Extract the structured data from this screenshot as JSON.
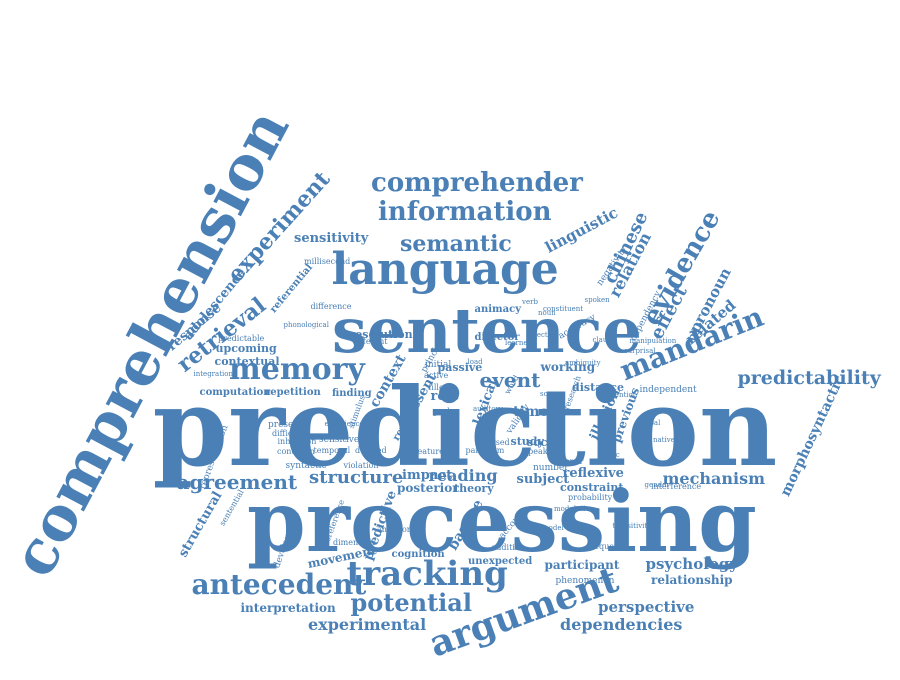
{
  "colors": {
    "word_fill": "#4a80b5",
    "background": "#ffffff"
  },
  "words": [
    "comprehension",
    "prediction",
    "processing",
    "sentence",
    "language",
    "comprehender",
    "information",
    "semantic",
    "memory",
    "mandarin",
    "predictability",
    "argument",
    "tracking",
    "antecedent",
    "potential",
    "experimental",
    "dependencies",
    "perspective",
    "psychology",
    "relationship",
    "mechanism",
    "agreement",
    "structure",
    "reading",
    "event",
    "evidence",
    "chinese",
    "linguistic",
    "relation",
    "pronoun",
    "related",
    "effect",
    "experiment",
    "retrieval",
    "sensitivity",
    "adolescence",
    "response",
    "upcoming",
    "contextual",
    "computation",
    "repetition",
    "resolution",
    "passive",
    "working",
    "distance",
    "reflexive",
    "constraint",
    "morphosyntactic",
    "structural",
    "participant",
    "phenomenon",
    "interpretation",
    "subject",
    "impact",
    "posterior",
    "theory",
    "basque",
    "predictive",
    "movement",
    "cognition",
    "unexpected",
    "lexical",
    "present",
    "role",
    "time",
    "study",
    "social",
    "illusion",
    "previous",
    "finding",
    "sensitive",
    "temporal",
    "syntactic",
    "inhibition",
    "condition",
    "presence",
    "difficulty",
    "violation",
    "number",
    "word",
    "director",
    "different",
    "difference",
    "referential",
    "dependency",
    "accuracy",
    "negativity",
    "initial",
    "active",
    "filler",
    "goal",
    "principle",
    "animacy",
    "account",
    "frequency",
    "delayed",
    "speaker",
    "listener",
    "context",
    "revision",
    "validity",
    "independent",
    "interference",
    "development",
    "coreference",
    "additive",
    "anaphor",
    "feature",
    "result",
    "parsed",
    "research",
    "paradigm",
    "probability",
    "stimulus",
    "dimension",
    "representation",
    "sentential",
    "millisecond",
    "phonological",
    "predictable",
    "integration",
    "experience",
    "load",
    "modulation",
    "spoken",
    "clause",
    "constituent",
    "verb",
    "noun",
    "gender",
    "model",
    "manipulation",
    "ambiguity",
    "surprisal",
    "transitivity",
    "attention",
    "verbal",
    "object",
    "learner",
    "native",
    "topic",
    "scope",
    "auditory",
    "visual",
    "eye"
  ]
}
